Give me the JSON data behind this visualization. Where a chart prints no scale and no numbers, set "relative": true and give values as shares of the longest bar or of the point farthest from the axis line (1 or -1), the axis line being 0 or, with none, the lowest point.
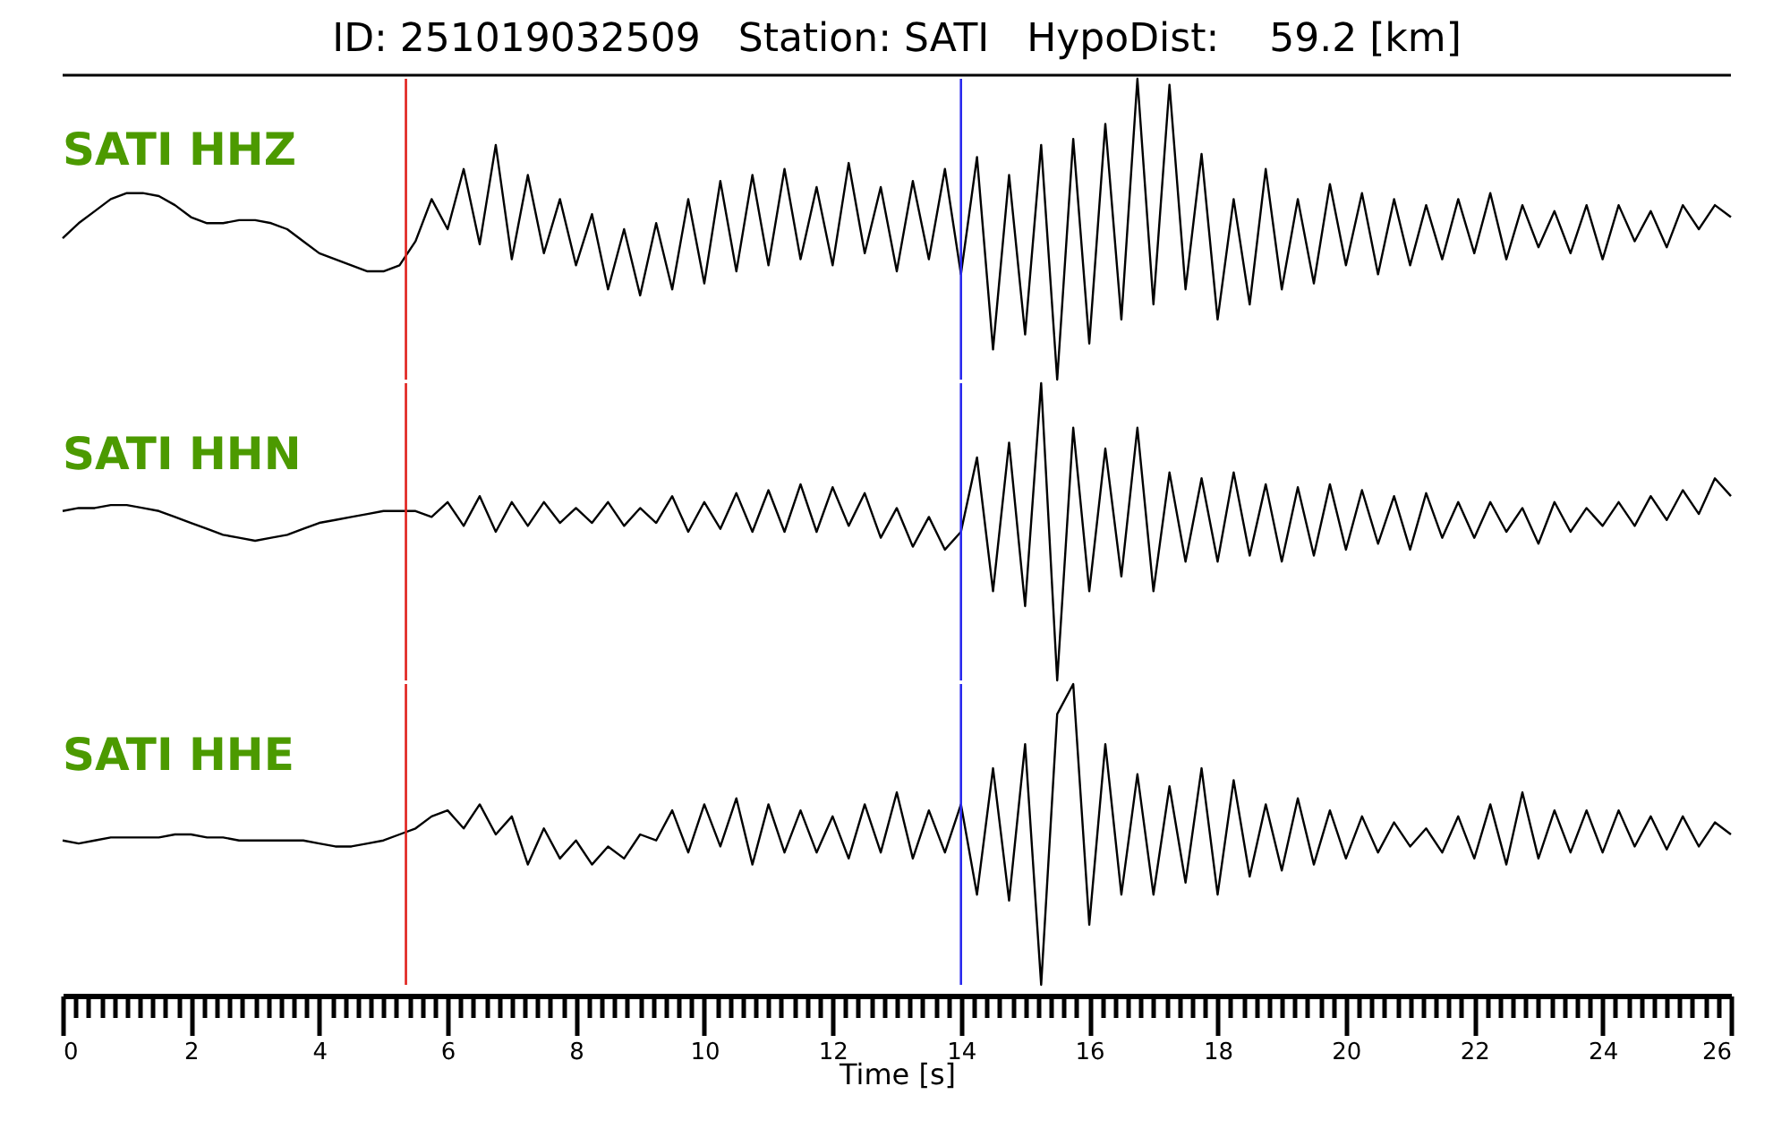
{
  "chart_data": [
    {
      "type": "line",
      "title": "ID: 251019032509   Station: SATI   HypoDist:    59.2 [km]",
      "relative": true,
      "tick_labels": false,
      "xlim": [
        0,
        26
      ],
      "x": [
        0,
        0.25,
        0.5,
        0.75,
        1,
        1.25,
        1.5,
        1.75,
        2,
        2.25,
        2.5,
        2.75,
        3,
        3.25,
        3.5,
        3.75,
        4,
        4.25,
        4.5,
        4.75,
        5,
        5.25,
        5.5,
        5.75,
        6,
        6.25,
        6.5,
        6.75,
        7,
        7.25,
        7.5,
        7.75,
        8,
        8.25,
        8.5,
        8.75,
        9,
        9.25,
        9.5,
        9.75,
        10,
        10.25,
        10.5,
        10.75,
        11,
        11.25,
        11.5,
        11.75,
        12,
        12.25,
        12.5,
        12.75,
        13,
        13.25,
        13.5,
        13.75,
        14,
        14.25,
        14.5,
        14.75,
        15,
        15.25,
        15.5,
        15.75,
        16,
        16.25,
        16.5,
        16.75,
        17,
        17.25,
        17.5,
        17.75,
        18,
        18.25,
        18.5,
        18.75,
        19,
        19.25,
        19.5,
        19.75,
        20,
        20.25,
        20.5,
        20.75,
        21,
        21.25,
        21.5,
        21.75,
        22,
        22.25,
        22.5,
        22.75,
        23,
        23.25,
        23.5,
        23.75,
        24,
        24.25,
        24.5,
        24.75,
        25,
        25.25,
        25.5,
        25.75,
        26
      ],
      "series": [
        {
          "name": "SATI HHZ",
          "color": "#000000",
          "values": [
            0.47,
            0.52,
            0.56,
            0.6,
            0.62,
            0.62,
            0.61,
            0.58,
            0.54,
            0.52,
            0.52,
            0.53,
            0.53,
            0.52,
            0.5,
            0.46,
            0.42,
            0.4,
            0.38,
            0.36,
            0.36,
            0.38,
            0.46,
            0.6,
            0.5,
            0.7,
            0.45,
            0.78,
            0.4,
            0.68,
            0.42,
            0.6,
            0.38,
            0.55,
            0.3,
            0.5,
            0.28,
            0.52,
            0.3,
            0.6,
            0.32,
            0.66,
            0.36,
            0.68,
            0.38,
            0.7,
            0.4,
            0.64,
            0.38,
            0.72,
            0.42,
            0.64,
            0.36,
            0.66,
            0.4,
            0.7,
            0.35,
            0.74,
            0.1,
            0.68,
            0.15,
            0.78,
            0.0,
            0.8,
            0.12,
            0.85,
            0.2,
            1.0,
            0.25,
            0.98,
            0.3,
            0.75,
            0.2,
            0.6,
            0.25,
            0.7,
            0.3,
            0.6,
            0.32,
            0.65,
            0.38,
            0.62,
            0.35,
            0.6,
            0.38,
            0.58,
            0.4,
            0.6,
            0.42,
            0.62,
            0.4,
            0.58,
            0.44,
            0.56,
            0.42,
            0.58,
            0.4,
            0.58,
            0.46,
            0.56,
            0.44,
            0.58,
            0.5,
            0.58,
            0.54
          ]
        }
      ],
      "ref_lines": [
        {
          "axis": "x",
          "value": 5.35,
          "color": "#e0201c"
        },
        {
          "axis": "x",
          "value": 14.0,
          "color": "#2a2aee"
        }
      ]
    },
    {
      "type": "line",
      "relative": true,
      "tick_labels": false,
      "xlim": [
        0,
        26
      ],
      "x": [
        0,
        0.25,
        0.5,
        0.75,
        1,
        1.25,
        1.5,
        1.75,
        2,
        2.25,
        2.5,
        2.75,
        3,
        3.25,
        3.5,
        3.75,
        4,
        4.25,
        4.5,
        4.75,
        5,
        5.25,
        5.5,
        5.75,
        6,
        6.25,
        6.5,
        6.75,
        7,
        7.25,
        7.5,
        7.75,
        8,
        8.25,
        8.5,
        8.75,
        9,
        9.25,
        9.5,
        9.75,
        10,
        10.25,
        10.5,
        10.75,
        11,
        11.25,
        11.5,
        11.75,
        12,
        12.25,
        12.5,
        12.75,
        13,
        13.25,
        13.5,
        13.75,
        14,
        14.25,
        14.5,
        14.75,
        15,
        15.25,
        15.5,
        15.75,
        16,
        16.25,
        16.5,
        16.75,
        17,
        17.25,
        17.5,
        17.75,
        18,
        18.25,
        18.5,
        18.75,
        19,
        19.25,
        19.5,
        19.75,
        20,
        20.25,
        20.5,
        20.75,
        21,
        21.25,
        21.5,
        21.75,
        22,
        22.25,
        22.5,
        22.75,
        23,
        23.25,
        23.5,
        23.75,
        24,
        24.25,
        24.5,
        24.75,
        25,
        25.25,
        25.5,
        25.75,
        26
      ],
      "series": [
        {
          "name": "SATI HHN",
          "color": "#000000",
          "values": [
            0.57,
            0.58,
            0.58,
            0.59,
            0.59,
            0.58,
            0.57,
            0.55,
            0.53,
            0.51,
            0.49,
            0.48,
            0.47,
            0.48,
            0.49,
            0.51,
            0.53,
            0.54,
            0.55,
            0.56,
            0.57,
            0.57,
            0.57,
            0.55,
            0.6,
            0.52,
            0.62,
            0.5,
            0.6,
            0.52,
            0.6,
            0.53,
            0.58,
            0.53,
            0.6,
            0.52,
            0.58,
            0.53,
            0.62,
            0.5,
            0.6,
            0.51,
            0.63,
            0.5,
            0.64,
            0.5,
            0.66,
            0.5,
            0.65,
            0.52,
            0.63,
            0.48,
            0.58,
            0.45,
            0.55,
            0.44,
            0.5,
            0.75,
            0.3,
            0.8,
            0.25,
            1.0,
            0.0,
            0.85,
            0.3,
            0.78,
            0.35,
            0.85,
            0.3,
            0.7,
            0.4,
            0.68,
            0.4,
            0.7,
            0.42,
            0.66,
            0.4,
            0.65,
            0.42,
            0.66,
            0.44,
            0.64,
            0.46,
            0.62,
            0.44,
            0.63,
            0.48,
            0.6,
            0.48,
            0.6,
            0.5,
            0.58,
            0.46,
            0.6,
            0.5,
            0.58,
            0.52,
            0.6,
            0.52,
            0.62,
            0.54,
            0.64,
            0.56,
            0.68,
            0.62
          ]
        }
      ],
      "ref_lines": [
        {
          "axis": "x",
          "value": 5.35,
          "color": "#e0201c"
        },
        {
          "axis": "x",
          "value": 14.0,
          "color": "#2a2aee"
        }
      ]
    },
    {
      "type": "line",
      "relative": true,
      "tick_labels": "x",
      "xlabel": "Time [s]",
      "xlim": [
        0,
        26
      ],
      "xticks": [
        0,
        {
          "value": 0.2,
          "label": null
        },
        {
          "value": 0.4,
          "label": null
        },
        {
          "value": 0.6,
          "label": null
        },
        {
          "value": 0.8,
          "label": null
        },
        {
          "value": 1,
          "label": null
        },
        {
          "value": 1.2,
          "label": null
        },
        {
          "value": 1.4,
          "label": null
        },
        {
          "value": 1.6,
          "label": null
        },
        {
          "value": 1.8,
          "label": null
        },
        2,
        {
          "value": 2.2,
          "label": null
        },
        {
          "value": 2.4,
          "label": null
        },
        {
          "value": 2.6,
          "label": null
        },
        {
          "value": 2.8,
          "label": null
        },
        {
          "value": 3,
          "label": null
        },
        {
          "value": 3.2,
          "label": null
        },
        {
          "value": 3.4,
          "label": null
        },
        {
          "value": 3.6,
          "label": null
        },
        {
          "value": 3.8,
          "label": null
        },
        4,
        {
          "value": 4.2,
          "label": null
        },
        {
          "value": 4.4,
          "label": null
        },
        {
          "value": 4.6,
          "label": null
        },
        {
          "value": 4.8,
          "label": null
        },
        {
          "value": 5,
          "label": null
        },
        {
          "value": 5.2,
          "label": null
        },
        {
          "value": 5.4,
          "label": null
        },
        {
          "value": 5.6,
          "label": null
        },
        {
          "value": 5.8,
          "label": null
        },
        6,
        {
          "value": 6.2,
          "label": null
        },
        {
          "value": 6.4,
          "label": null
        },
        {
          "value": 6.6,
          "label": null
        },
        {
          "value": 6.8,
          "label": null
        },
        {
          "value": 7,
          "label": null
        },
        {
          "value": 7.2,
          "label": null
        },
        {
          "value": 7.4,
          "label": null
        },
        {
          "value": 7.6,
          "label": null
        },
        {
          "value": 7.8,
          "label": null
        },
        8,
        {
          "value": 8.2,
          "label": null
        },
        {
          "value": 8.4,
          "label": null
        },
        {
          "value": 8.6,
          "label": null
        },
        {
          "value": 8.8,
          "label": null
        },
        {
          "value": 9,
          "label": null
        },
        {
          "value": 9.2,
          "label": null
        },
        {
          "value": 9.4,
          "label": null
        },
        {
          "value": 9.6,
          "label": null
        },
        {
          "value": 9.8,
          "label": null
        },
        10,
        {
          "value": 10.2,
          "label": null
        },
        {
          "value": 10.4,
          "label": null
        },
        {
          "value": 10.6,
          "label": null
        },
        {
          "value": 10.8,
          "label": null
        },
        {
          "value": 11,
          "label": null
        },
        {
          "value": 11.2,
          "label": null
        },
        {
          "value": 11.4,
          "label": null
        },
        {
          "value": 11.6,
          "label": null
        },
        {
          "value": 11.8,
          "label": null
        },
        12,
        {
          "value": 12.2,
          "label": null
        },
        {
          "value": 12.4,
          "label": null
        },
        {
          "value": 12.6,
          "label": null
        },
        {
          "value": 12.8,
          "label": null
        },
        {
          "value": 13,
          "label": null
        },
        {
          "value": 13.2,
          "label": null
        },
        {
          "value": 13.4,
          "label": null
        },
        {
          "value": 13.6,
          "label": null
        },
        {
          "value": 13.8,
          "label": null
        },
        14,
        {
          "value": 14.2,
          "label": null
        },
        {
          "value": 14.4,
          "label": null
        },
        {
          "value": 14.6,
          "label": null
        },
        {
          "value": 14.8,
          "label": null
        },
        {
          "value": 15,
          "label": null
        },
        {
          "value": 15.2,
          "label": null
        },
        {
          "value": 15.4,
          "label": null
        },
        {
          "value": 15.6,
          "label": null
        },
        {
          "value": 15.8,
          "label": null
        },
        16,
        {
          "value": 16.2,
          "label": null
        },
        {
          "value": 16.4,
          "label": null
        },
        {
          "value": 16.6,
          "label": null
        },
        {
          "value": 16.8,
          "label": null
        },
        {
          "value": 17,
          "label": null
        },
        {
          "value": 17.2,
          "label": null
        },
        {
          "value": 17.4,
          "label": null
        },
        {
          "value": 17.6,
          "label": null
        },
        {
          "value": 17.8,
          "label": null
        },
        18,
        {
          "value": 18.2,
          "label": null
        },
        {
          "value": 18.4,
          "label": null
        },
        {
          "value": 18.6,
          "label": null
        },
        {
          "value": 18.8,
          "label": null
        },
        {
          "value": 19,
          "label": null
        },
        {
          "value": 19.2,
          "label": null
        },
        {
          "value": 19.4,
          "label": null
        },
        {
          "value": 19.6,
          "label": null
        },
        {
          "value": 19.8,
          "label": null
        },
        20,
        {
          "value": 20.2,
          "label": null
        },
        {
          "value": 20.4,
          "label": null
        },
        {
          "value": 20.6,
          "label": null
        },
        {
          "value": 20.8,
          "label": null
        },
        {
          "value": 21,
          "label": null
        },
        {
          "value": 21.2,
          "label": null
        },
        {
          "value": 21.4,
          "label": null
        },
        {
          "value": 21.6,
          "label": null
        },
        {
          "value": 21.8,
          "label": null
        },
        22,
        {
          "value": 22.2,
          "label": null
        },
        {
          "value": 22.4,
          "label": null
        },
        {
          "value": 22.6,
          "label": null
        },
        {
          "value": 22.8,
          "label": null
        },
        {
          "value": 23,
          "label": null
        },
        {
          "value": 23.2,
          "label": null
        },
        {
          "value": 23.4,
          "label": null
        },
        {
          "value": 23.6,
          "label": null
        },
        {
          "value": 23.8,
          "label": null
        },
        24,
        {
          "value": 24.2,
          "label": null
        },
        {
          "value": 24.4,
          "label": null
        },
        {
          "value": 24.6,
          "label": null
        },
        {
          "value": 24.8,
          "label": null
        },
        {
          "value": 25,
          "label": null
        },
        {
          "value": 25.2,
          "label": null
        },
        {
          "value": 25.4,
          "label": null
        },
        {
          "value": 25.6,
          "label": null
        },
        {
          "value": 25.8,
          "label": null
        },
        26
      ],
      "x": [
        0,
        0.25,
        0.5,
        0.75,
        1,
        1.25,
        1.5,
        1.75,
        2,
        2.25,
        2.5,
        2.75,
        3,
        3.25,
        3.5,
        3.75,
        4,
        4.25,
        4.5,
        4.75,
        5,
        5.25,
        5.5,
        5.75,
        6,
        6.25,
        6.5,
        6.75,
        7,
        7.25,
        7.5,
        7.75,
        8,
        8.25,
        8.5,
        8.75,
        9,
        9.25,
        9.5,
        9.75,
        10,
        10.25,
        10.5,
        10.75,
        11,
        11.25,
        11.5,
        11.75,
        12,
        12.25,
        12.5,
        12.75,
        13,
        13.25,
        13.5,
        13.75,
        14,
        14.25,
        14.5,
        14.75,
        15,
        15.25,
        15.5,
        15.75,
        16,
        16.25,
        16.5,
        16.75,
        17,
        17.25,
        17.5,
        17.75,
        18,
        18.25,
        18.5,
        18.75,
        19,
        19.25,
        19.5,
        19.75,
        20,
        20.25,
        20.5,
        20.75,
        21,
        21.25,
        21.5,
        21.75,
        22,
        22.25,
        22.5,
        22.75,
        23,
        23.25,
        23.5,
        23.75,
        24,
        24.25,
        24.5,
        24.75,
        25,
        25.25,
        25.5,
        25.75,
        26
      ],
      "series": [
        {
          "name": "SATI HHE",
          "color": "#000000",
          "values": [
            0.48,
            0.47,
            0.48,
            0.49,
            0.49,
            0.49,
            0.49,
            0.5,
            0.5,
            0.49,
            0.49,
            0.48,
            0.48,
            0.48,
            0.48,
            0.48,
            0.47,
            0.46,
            0.46,
            0.47,
            0.48,
            0.5,
            0.52,
            0.56,
            0.58,
            0.52,
            0.6,
            0.5,
            0.56,
            0.4,
            0.52,
            0.42,
            0.48,
            0.4,
            0.46,
            0.42,
            0.5,
            0.48,
            0.58,
            0.44,
            0.6,
            0.46,
            0.62,
            0.4,
            0.6,
            0.44,
            0.58,
            0.44,
            0.56,
            0.42,
            0.6,
            0.44,
            0.64,
            0.42,
            0.58,
            0.44,
            0.6,
            0.3,
            0.72,
            0.28,
            0.8,
            0.0,
            0.9,
            1.0,
            0.2,
            0.8,
            0.3,
            0.7,
            0.3,
            0.66,
            0.34,
            0.72,
            0.3,
            0.68,
            0.36,
            0.6,
            0.38,
            0.62,
            0.4,
            0.58,
            0.42,
            0.56,
            0.44,
            0.54,
            0.46,
            0.52,
            0.44,
            0.56,
            0.42,
            0.6,
            0.4,
            0.64,
            0.42,
            0.58,
            0.44,
            0.58,
            0.44,
            0.58,
            0.46,
            0.56,
            0.45,
            0.56,
            0.46,
            0.54,
            0.5
          ]
        }
      ],
      "ref_lines": [
        {
          "axis": "x",
          "value": 5.35,
          "color": "#e0201c"
        },
        {
          "axis": "x",
          "value": 14.0,
          "color": "#2a2aee"
        }
      ]
    }
  ]
}
